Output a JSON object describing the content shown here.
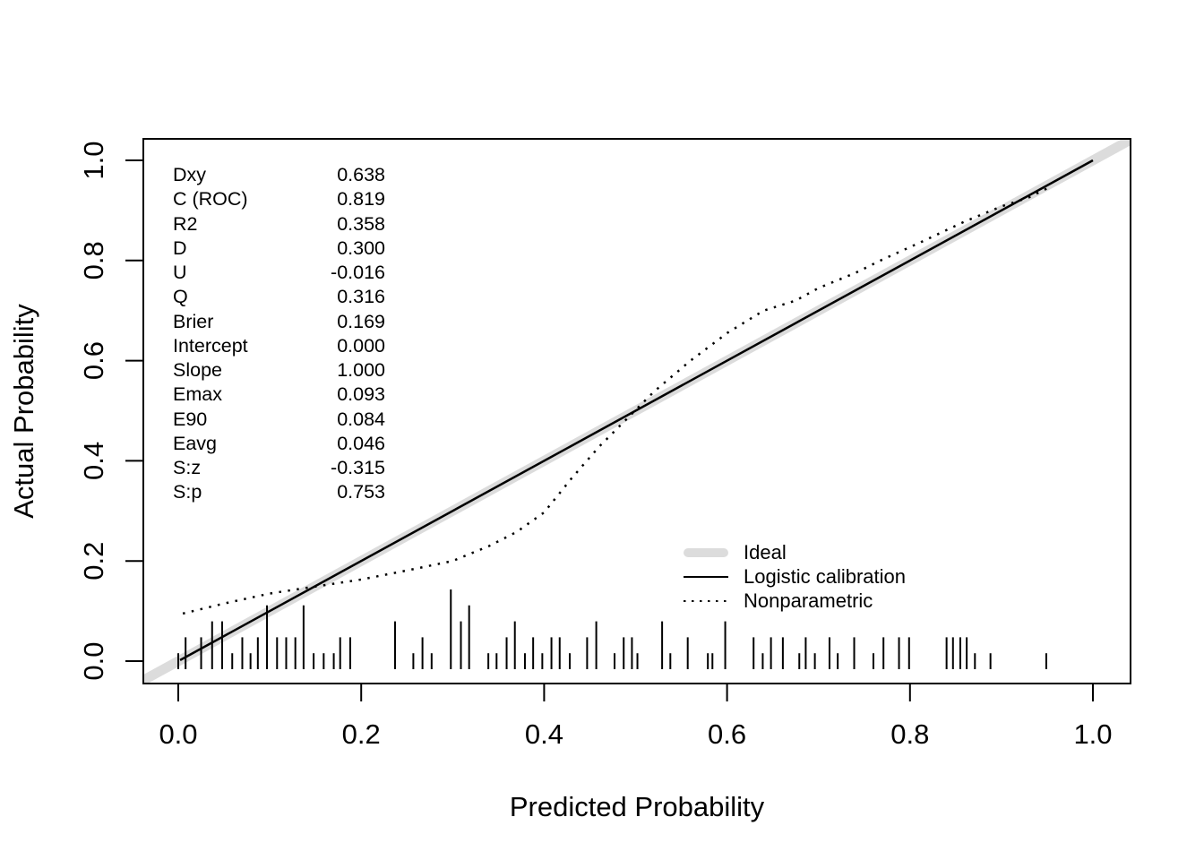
{
  "chart_data": {
    "type": "line",
    "title": "",
    "xlabel": "Predicted Probability",
    "ylabel": "Actual Probability",
    "xlim": [
      -0.04,
      1.04
    ],
    "ylim": [
      -0.04,
      1.04
    ],
    "x_ticks": [
      0.0,
      0.2,
      0.4,
      0.6,
      0.8,
      1.0
    ],
    "y_ticks": [
      0.0,
      0.2,
      0.4,
      0.6,
      0.8,
      1.0
    ],
    "grid": false,
    "colors": {
      "ideal_gray": "#dcdcdc",
      "line_black": "#000000",
      "background": "#ffffff"
    },
    "series": [
      {
        "name": "Ideal",
        "style": "thick_gray",
        "points": [
          [
            -0.05,
            -0.05
          ],
          [
            1.05,
            1.05
          ]
        ]
      },
      {
        "name": "Logistic calibration",
        "style": "solid_black",
        "points": [
          [
            0.002,
            0.002
          ],
          [
            1.0,
            1.0
          ]
        ]
      },
      {
        "name": "Nonparametric",
        "style": "dotted_black",
        "points": [
          [
            0.005,
            0.095
          ],
          [
            0.05,
            0.115
          ],
          [
            0.1,
            0.135
          ],
          [
            0.15,
            0.149
          ],
          [
            0.2,
            0.163
          ],
          [
            0.25,
            0.181
          ],
          [
            0.3,
            0.2
          ],
          [
            0.34,
            0.23
          ],
          [
            0.37,
            0.258
          ],
          [
            0.4,
            0.297
          ],
          [
            0.43,
            0.365
          ],
          [
            0.46,
            0.428
          ],
          [
            0.49,
            0.483
          ],
          [
            0.52,
            0.538
          ],
          [
            0.56,
            0.6
          ],
          [
            0.6,
            0.655
          ],
          [
            0.64,
            0.7
          ],
          [
            0.675,
            0.72
          ],
          [
            0.7,
            0.745
          ],
          [
            0.74,
            0.775
          ],
          [
            0.77,
            0.802
          ],
          [
            0.81,
            0.835
          ],
          [
            0.86,
            0.878
          ],
          [
            0.9,
            0.908
          ],
          [
            0.93,
            0.926
          ],
          [
            0.951,
            0.945
          ]
        ]
      }
    ],
    "rug_spikes": [
      [
        0.0,
        1
      ],
      [
        0.008,
        2
      ],
      [
        0.025,
        2
      ],
      [
        0.037,
        3
      ],
      [
        0.048,
        3
      ],
      [
        0.059,
        1
      ],
      [
        0.07,
        2
      ],
      [
        0.079,
        1
      ],
      [
        0.087,
        2
      ],
      [
        0.097,
        4
      ],
      [
        0.108,
        2
      ],
      [
        0.118,
        2
      ],
      [
        0.128,
        2
      ],
      [
        0.137,
        4
      ],
      [
        0.148,
        1
      ],
      [
        0.159,
        1
      ],
      [
        0.17,
        1
      ],
      [
        0.177,
        2
      ],
      [
        0.188,
        2
      ],
      [
        0.237,
        3
      ],
      [
        0.257,
        1
      ],
      [
        0.267,
        2
      ],
      [
        0.277,
        1
      ],
      [
        0.298,
        5
      ],
      [
        0.309,
        3
      ],
      [
        0.318,
        4
      ],
      [
        0.339,
        1
      ],
      [
        0.348,
        1
      ],
      [
        0.359,
        2
      ],
      [
        0.368,
        3
      ],
      [
        0.379,
        1
      ],
      [
        0.388,
        2
      ],
      [
        0.398,
        1
      ],
      [
        0.408,
        2
      ],
      [
        0.417,
        2
      ],
      [
        0.428,
        1
      ],
      [
        0.447,
        2
      ],
      [
        0.457,
        3
      ],
      [
        0.477,
        1
      ],
      [
        0.487,
        2
      ],
      [
        0.496,
        2
      ],
      [
        0.502,
        1
      ],
      [
        0.529,
        3
      ],
      [
        0.538,
        1
      ],
      [
        0.557,
        2
      ],
      [
        0.579,
        1
      ],
      [
        0.584,
        1
      ],
      [
        0.598,
        3
      ],
      [
        0.629,
        2
      ],
      [
        0.639,
        1
      ],
      [
        0.648,
        2
      ],
      [
        0.661,
        2
      ],
      [
        0.679,
        1
      ],
      [
        0.686,
        2
      ],
      [
        0.696,
        1
      ],
      [
        0.712,
        2
      ],
      [
        0.721,
        1
      ],
      [
        0.739,
        2
      ],
      [
        0.76,
        1
      ],
      [
        0.771,
        2
      ],
      [
        0.788,
        2
      ],
      [
        0.799,
        2
      ],
      [
        0.84,
        2
      ],
      [
        0.847,
        2
      ],
      [
        0.855,
        2
      ],
      [
        0.862,
        2
      ],
      [
        0.871,
        1
      ],
      [
        0.888,
        1
      ],
      [
        0.949,
        1
      ]
    ],
    "legend": {
      "position": "bottom-right",
      "items": [
        {
          "label": "Ideal",
          "style": "thick_gray"
        },
        {
          "label": "Logistic calibration",
          "style": "solid_black"
        },
        {
          "label": "Nonparametric",
          "style": "dotted_black"
        }
      ]
    },
    "stats": [
      {
        "label": "Dxy",
        "value": "0.638"
      },
      {
        "label": "C (ROC)",
        "value": "0.819"
      },
      {
        "label": "R2",
        "value": "0.358"
      },
      {
        "label": "D",
        "value": "0.300"
      },
      {
        "label": "U",
        "value": "-0.016"
      },
      {
        "label": "Q",
        "value": "0.316"
      },
      {
        "label": "Brier",
        "value": "0.169"
      },
      {
        "label": "Intercept",
        "value": "0.000"
      },
      {
        "label": "Slope",
        "value": "1.000"
      },
      {
        "label": "Emax",
        "value": "0.093"
      },
      {
        "label": "E90",
        "value": "0.084"
      },
      {
        "label": "Eavg",
        "value": "0.046"
      },
      {
        "label": "S:z",
        "value": "-0.315"
      },
      {
        "label": "S:p",
        "value": "0.753"
      }
    ]
  }
}
